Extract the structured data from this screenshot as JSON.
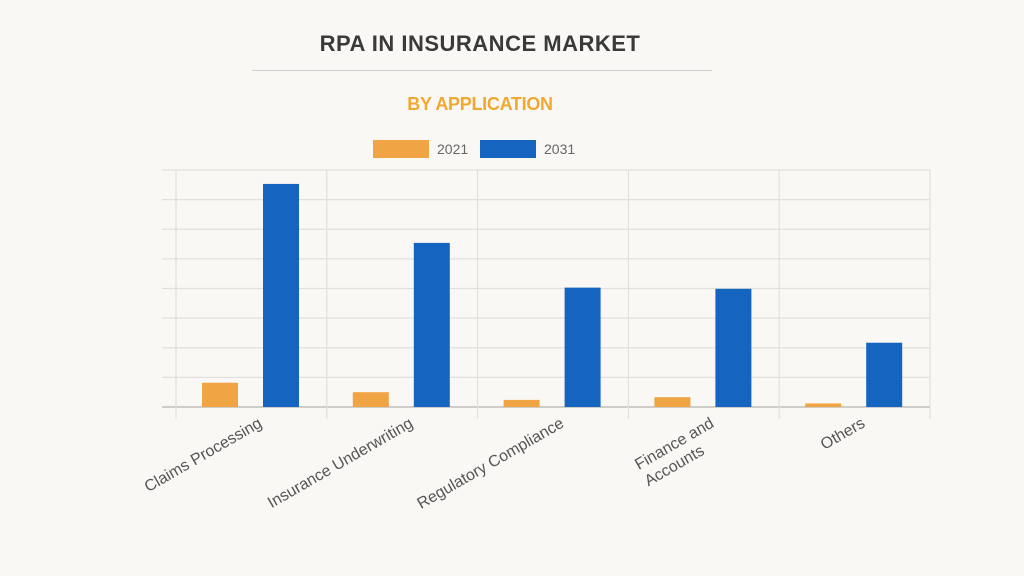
{
  "title": "RPA IN INSURANCE MARKET",
  "subtitle": "BY APPLICATION",
  "legend": [
    {
      "label": "2021",
      "color": "#f0a444"
    },
    {
      "label": "2031",
      "color": "#1565c0"
    }
  ],
  "chart_data": {
    "type": "bar",
    "title": "RPA IN INSURANCE MARKET",
    "subtitle": "BY APPLICATION",
    "categories": [
      "Claims Processing",
      "Insurance Underwriting",
      "Regulatory Compliance",
      "Finance and Accounts",
      "Others"
    ],
    "series": [
      {
        "name": "2021",
        "color": "#f0a444",
        "values": [
          0.82,
          0.5,
          0.24,
          0.33,
          0.12
        ]
      },
      {
        "name": "2031",
        "color": "#1565c0",
        "values": [
          7.53,
          5.54,
          4.03,
          3.99,
          2.17
        ]
      }
    ],
    "xlabel": "",
    "ylabel": "",
    "y_units": "relative (gridline units, no axis values shown)",
    "ylim": [
      0,
      8
    ],
    "y_tick_labels_visible": false,
    "grid": true,
    "legend_position": "top",
    "x_tick_rotation": -30
  }
}
